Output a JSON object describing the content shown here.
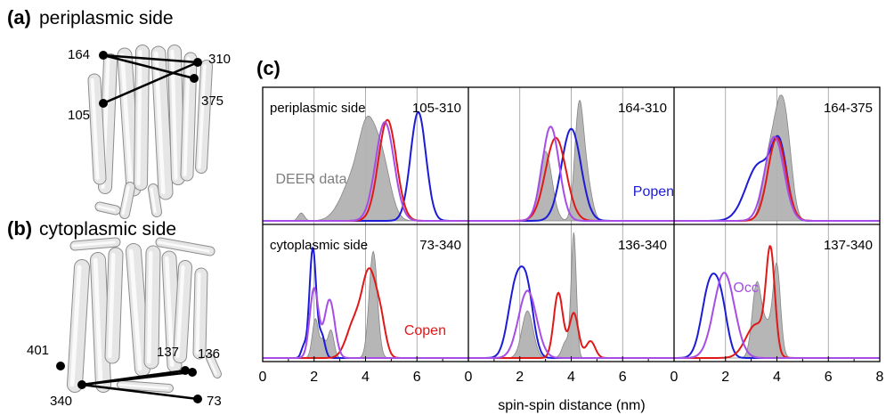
{
  "panels": {
    "a": {
      "tag": "(a)",
      "title": "periplasmic side",
      "residues": [
        "164",
        "310",
        "105",
        "375"
      ]
    },
    "b": {
      "tag": "(b)",
      "title": "cytoplasmic side",
      "residues": [
        "401",
        "137",
        "136",
        "340",
        "73"
      ]
    },
    "c": {
      "tag": "(c)"
    }
  },
  "chart_data": {
    "type": "line",
    "xlabel": "spin-spin distance (nm)",
    "xlim": [
      0,
      8
    ],
    "xticks": [
      0,
      2,
      4,
      6,
      8
    ],
    "grid_x": [
      2,
      4,
      6
    ],
    "row_labels": [
      "periplasmic side",
      "cytoplasmic side"
    ],
    "legend_labels": {
      "deer": "DEER data",
      "popen": "Popen",
      "copen": "Copen",
      "occ": "Occ"
    },
    "colors": {
      "deer": "#b3b3b3",
      "deer_dark": "#7f7f7f",
      "popen": "#1c1cd6",
      "copen": "#e01818",
      "occ": "#a64de6"
    },
    "subplots": [
      {
        "label": "105-310",
        "deer": [
          [
            1.5,
            0.07,
            0.12
          ],
          [
            3.6,
            0.4,
            0.5
          ],
          [
            4.05,
            0.5,
            0.3
          ],
          [
            4.6,
            0.55,
            0.35
          ]
        ],
        "popen": [
          [
            6.05,
            0.97,
            0.3
          ]
        ],
        "copen": [
          [
            4.85,
            0.9,
            0.35
          ]
        ],
        "occ": [
          [
            4.75,
            0.88,
            0.36
          ]
        ]
      },
      {
        "label": "164-310",
        "deer": [
          [
            3.0,
            0.62,
            0.25
          ],
          [
            4.3,
            0.95,
            0.17
          ],
          [
            4.6,
            0.35,
            0.2
          ]
        ],
        "popen": [
          [
            4.0,
            0.82,
            0.38
          ]
        ],
        "copen": [
          [
            3.4,
            0.74,
            0.4
          ]
        ],
        "occ": [
          [
            3.2,
            0.84,
            0.33
          ]
        ]
      },
      {
        "label": "164-375",
        "deer": [
          [
            3.7,
            0.55,
            0.25
          ],
          [
            4.1,
            0.72,
            0.22
          ],
          [
            4.4,
            0.6,
            0.22
          ]
        ],
        "popen": [
          [
            3.3,
            0.5,
            0.5
          ],
          [
            4.1,
            0.6,
            0.3
          ]
        ],
        "copen": [
          [
            4.0,
            0.74,
            0.35
          ]
        ],
        "occ": [
          [
            3.9,
            0.75,
            0.37
          ]
        ]
      },
      {
        "label": "73-340",
        "deer": [
          [
            2.05,
            0.35,
            0.12
          ],
          [
            2.35,
            0.15,
            0.1
          ],
          [
            2.65,
            0.25,
            0.12
          ],
          [
            4.3,
            0.95,
            0.16
          ]
        ],
        "popen": [
          [
            1.6,
            0.1,
            0.1
          ],
          [
            1.95,
            0.98,
            0.13
          ],
          [
            2.3,
            0.2,
            0.12
          ]
        ],
        "copen": [
          [
            3.55,
            0.3,
            0.3
          ],
          [
            4.15,
            0.74,
            0.28
          ],
          [
            4.6,
            0.25,
            0.2
          ]
        ],
        "occ": [
          [
            2.0,
            0.62,
            0.17
          ],
          [
            2.6,
            0.52,
            0.2
          ]
        ]
      },
      {
        "label": "136-340",
        "deer": [
          [
            2.3,
            0.42,
            0.22
          ],
          [
            4.1,
            1.1,
            0.1
          ],
          [
            3.8,
            0.15,
            0.15
          ]
        ],
        "popen": [
          [
            1.85,
            0.64,
            0.3
          ],
          [
            2.3,
            0.5,
            0.25
          ]
        ],
        "copen": [
          [
            3.5,
            0.58,
            0.18
          ],
          [
            4.1,
            0.4,
            0.18
          ],
          [
            4.75,
            0.15,
            0.18
          ]
        ],
        "occ": [
          [
            2.3,
            0.6,
            0.35
          ]
        ]
      },
      {
        "label": "137-340",
        "deer": [
          [
            3.2,
            0.55,
            0.17
          ],
          [
            4.0,
            0.72,
            0.14
          ],
          [
            3.6,
            0.3,
            0.3
          ]
        ],
        "popen": [
          [
            1.4,
            0.65,
            0.32
          ],
          [
            1.85,
            0.35,
            0.25
          ]
        ],
        "copen": [
          [
            3.2,
            0.3,
            0.4
          ],
          [
            3.75,
            0.88,
            0.17
          ]
        ],
        "occ": [
          [
            1.95,
            0.76,
            0.4
          ]
        ]
      }
    ]
  }
}
